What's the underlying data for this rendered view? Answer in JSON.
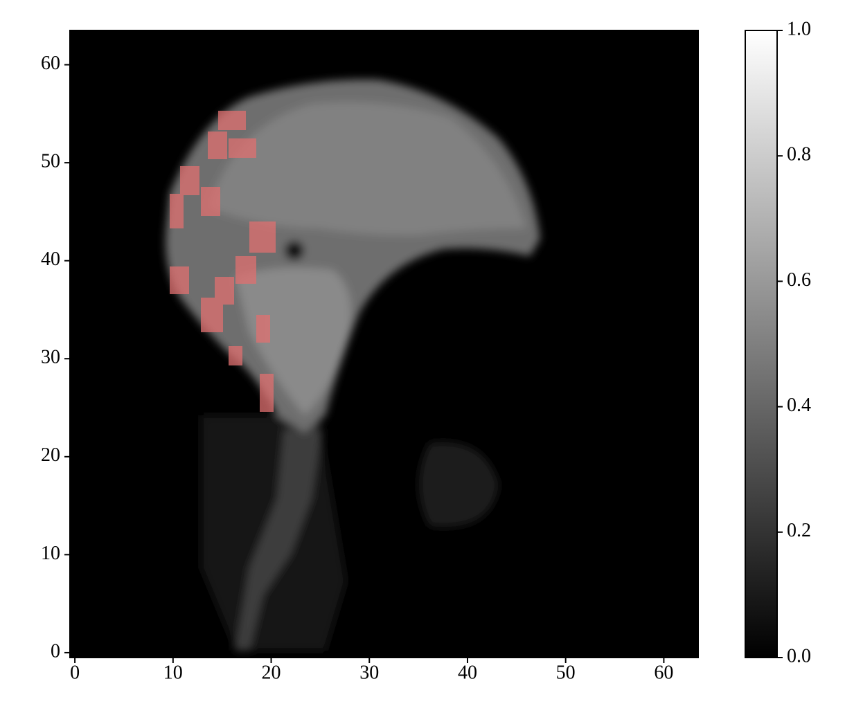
{
  "chart_data": {
    "type": "image",
    "xlim": [
      -0.5,
      63.5
    ],
    "ylim": [
      -0.5,
      63.5
    ],
    "xticks": [
      0,
      10,
      20,
      30,
      40,
      50,
      60
    ],
    "yticks": [
      0,
      10,
      20,
      30,
      40,
      50,
      60
    ],
    "colorbar": {
      "lim": [
        0,
        1
      ],
      "colors": [
        "#000000",
        "#ffffff"
      ],
      "ticks": [
        {
          "value": 0,
          "label": "0.0"
        },
        0.2,
        0.4,
        0.6,
        0.8,
        {
          "value": 1,
          "label": "1.0"
        }
      ]
    }
  }
}
